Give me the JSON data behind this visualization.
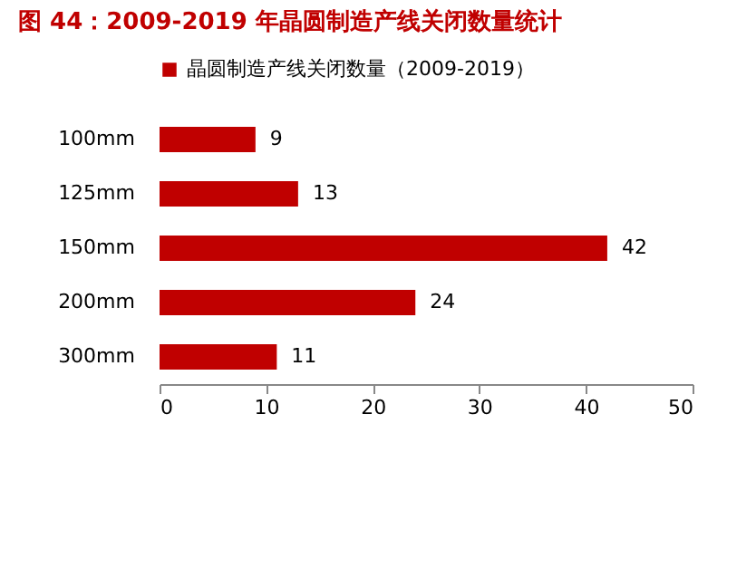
{
  "chart_data": {
    "type": "bar",
    "orientation": "horizontal",
    "title": "图 44：2009-2019 年晶圆制造产线关闭数量统计",
    "categories": [
      "100mm",
      "125mm",
      "150mm",
      "200mm",
      "300mm"
    ],
    "series": [
      {
        "name": "晶圆制造产线关闭数量（2009-2019）",
        "color": "#c00000",
        "values": [
          9,
          13,
          42,
          24,
          11
        ]
      }
    ],
    "xlim": [
      0,
      50
    ],
    "xticks": [
      0,
      10,
      20,
      30,
      40,
      50
    ],
    "grid": false,
    "legend": "top",
    "data_labels": true
  }
}
